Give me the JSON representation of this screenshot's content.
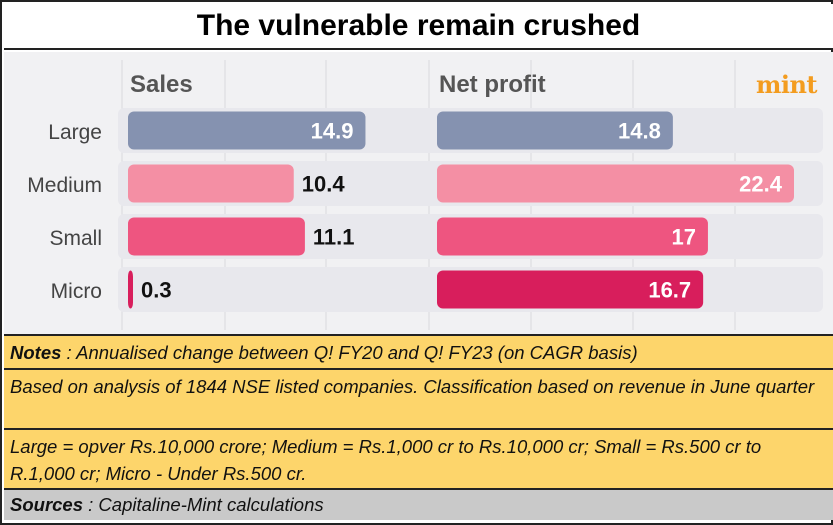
{
  "title": "The vulnerable remain crushed",
  "brand": "mint",
  "chart_data": {
    "type": "bar",
    "orientation": "horizontal",
    "categories": [
      "Large",
      "Medium",
      "Small",
      "Micro"
    ],
    "series": [
      {
        "name": "Sales",
        "values": [
          14.9,
          10.4,
          11.1,
          0.3
        ]
      },
      {
        "name": "Net profit",
        "values": [
          14.8,
          22.4,
          17,
          16.7
        ]
      }
    ],
    "value_labels": {
      "Sales": [
        "14.9",
        "10.4",
        "11.1",
        "0.3"
      ],
      "Net profit": [
        "14.8",
        "22.4",
        "17",
        "16.7"
      ]
    },
    "colors": [
      "#8592b0",
      "#f48fa4",
      "#ee5580",
      "#d81e5c"
    ],
    "track_color": "#e4e4ea",
    "grid": true
  },
  "notes": {
    "label": "Notes",
    "text": " : Annualised change between Q! FY20 and Q! FY23 (on CAGR basis)",
    "analysis": "Based on analysis of 1844 NSE listed companies. Classification based on revenue in June quarter",
    "definitions": "Large = opver Rs.10,000 crore; Medium = Rs.1,000 cr to Rs.10,000 cr; Small = Rs.500 cr to R.1,000 cr; Micro - Under Rs.500 cr."
  },
  "sources": {
    "label": "Sources",
    "text": " : Capitaline-Mint calculations"
  }
}
